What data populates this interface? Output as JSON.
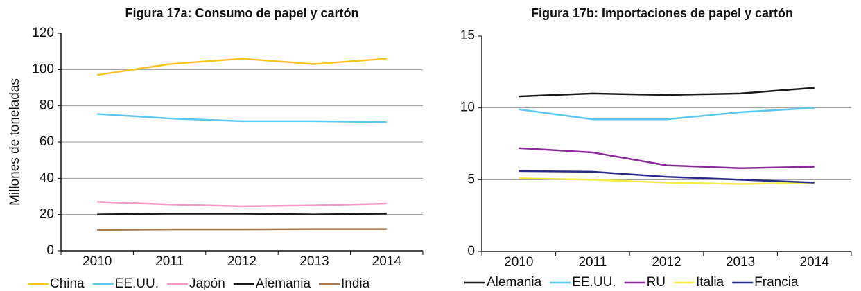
{
  "chart_data": [
    {
      "type": "line",
      "title": "Figura 17a: Consumo de papel y cartón",
      "ylabel": "Millones de toneladas",
      "categories": [
        "2010",
        "2011",
        "2012",
        "2013",
        "2014"
      ],
      "ylim": [
        0,
        120
      ],
      "yticks": [
        0,
        20,
        40,
        60,
        80,
        100,
        120
      ],
      "grid": true,
      "series": [
        {
          "name": "China",
          "color": "#f7c325",
          "values": [
            97,
            103,
            106,
            103,
            106
          ]
        },
        {
          "name": "EE.UU.",
          "color": "#5bc8f0",
          "values": [
            75.5,
            73,
            71.5,
            71.5,
            71
          ]
        },
        {
          "name": "Japón",
          "color": "#f29ac4",
          "values": [
            27,
            25.5,
            24.5,
            25,
            26
          ]
        },
        {
          "name": "Alemania",
          "color": "#1a1a1a",
          "values": [
            20,
            20.5,
            20.5,
            20,
            20.5
          ]
        },
        {
          "name": "India",
          "color": "#a8784a",
          "values": [
            11.5,
            11.8,
            11.8,
            12,
            12
          ]
        }
      ]
    },
    {
      "type": "line",
      "title": "Figura 17b: Importaciones de papel y cartón",
      "categories": [
        "2010",
        "2011",
        "2012",
        "2013",
        "2014"
      ],
      "ylim": [
        0,
        15
      ],
      "yticks": [
        0,
        5,
        10,
        15
      ],
      "grid": true,
      "series": [
        {
          "name": "Alemania",
          "color": "#1a1a1a",
          "values": [
            10.8,
            11.0,
            10.9,
            11.0,
            11.4
          ]
        },
        {
          "name": "EE.UU.",
          "color": "#5bc8f0",
          "values": [
            9.9,
            9.2,
            9.2,
            9.7,
            10.0
          ]
        },
        {
          "name": "RU",
          "color": "#8a2a9a",
          "values": [
            7.2,
            6.9,
            6.0,
            5.8,
            5.9
          ]
        },
        {
          "name": "Italia",
          "color": "#f5ec4a",
          "values": [
            5.1,
            5.0,
            4.8,
            4.7,
            4.8
          ]
        },
        {
          "name": "Francia",
          "color": "#2a2a8a",
          "values": [
            5.6,
            5.55,
            5.2,
            5.0,
            4.8
          ]
        }
      ]
    }
  ]
}
